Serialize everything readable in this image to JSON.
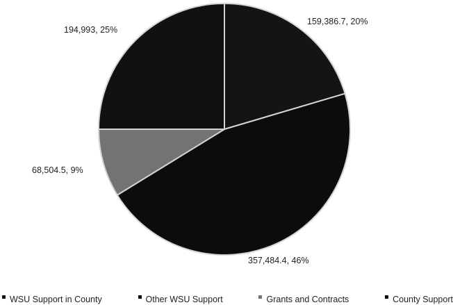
{
  "chart_data": {
    "type": "pie",
    "title": "",
    "start_angle_deg": 0,
    "direction": "clockwise",
    "slices": [
      {
        "name": "WSU Support in County",
        "value": 159386.7,
        "label": "159,386.7, 20%",
        "color": "#141414"
      },
      {
        "name": "Other WSU Support",
        "value": 357484.4,
        "label": "357,484.4, 46%",
        "color": "#0c0c0c"
      },
      {
        "name": "Grants and Contracts",
        "value": 68504.5,
        "label": "68,504.5, 9%",
        "color": "#737373"
      },
      {
        "name": "County Support",
        "value": 194993,
        "label": "194,993, 25%",
        "color": "#111111"
      }
    ],
    "legend_position": "bottom",
    "slice_border_color": "#d4d4d4"
  }
}
